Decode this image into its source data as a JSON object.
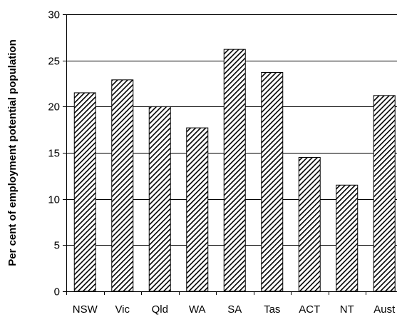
{
  "chart_data": {
    "type": "bar",
    "title": "",
    "xlabel": "",
    "ylabel": "Per cent of employment potential population",
    "categories": [
      "NSW",
      "Vic",
      "Qld",
      "WA",
      "SA",
      "Tas",
      "ACT",
      "NT",
      "Aust"
    ],
    "values": [
      21.5,
      22.9,
      20.0,
      17.7,
      26.2,
      23.7,
      14.5,
      11.5,
      21.2
    ],
    "ylim": [
      0,
      30
    ],
    "yticks": [
      0,
      5,
      10,
      15,
      20,
      25,
      30
    ],
    "grid": true,
    "legend": "none",
    "bar_pattern": "diagonal-hatch",
    "colors": {
      "bar_stroke": "#000000",
      "hatch": "#000000",
      "grid": "#000000",
      "background": "#ffffff"
    }
  }
}
